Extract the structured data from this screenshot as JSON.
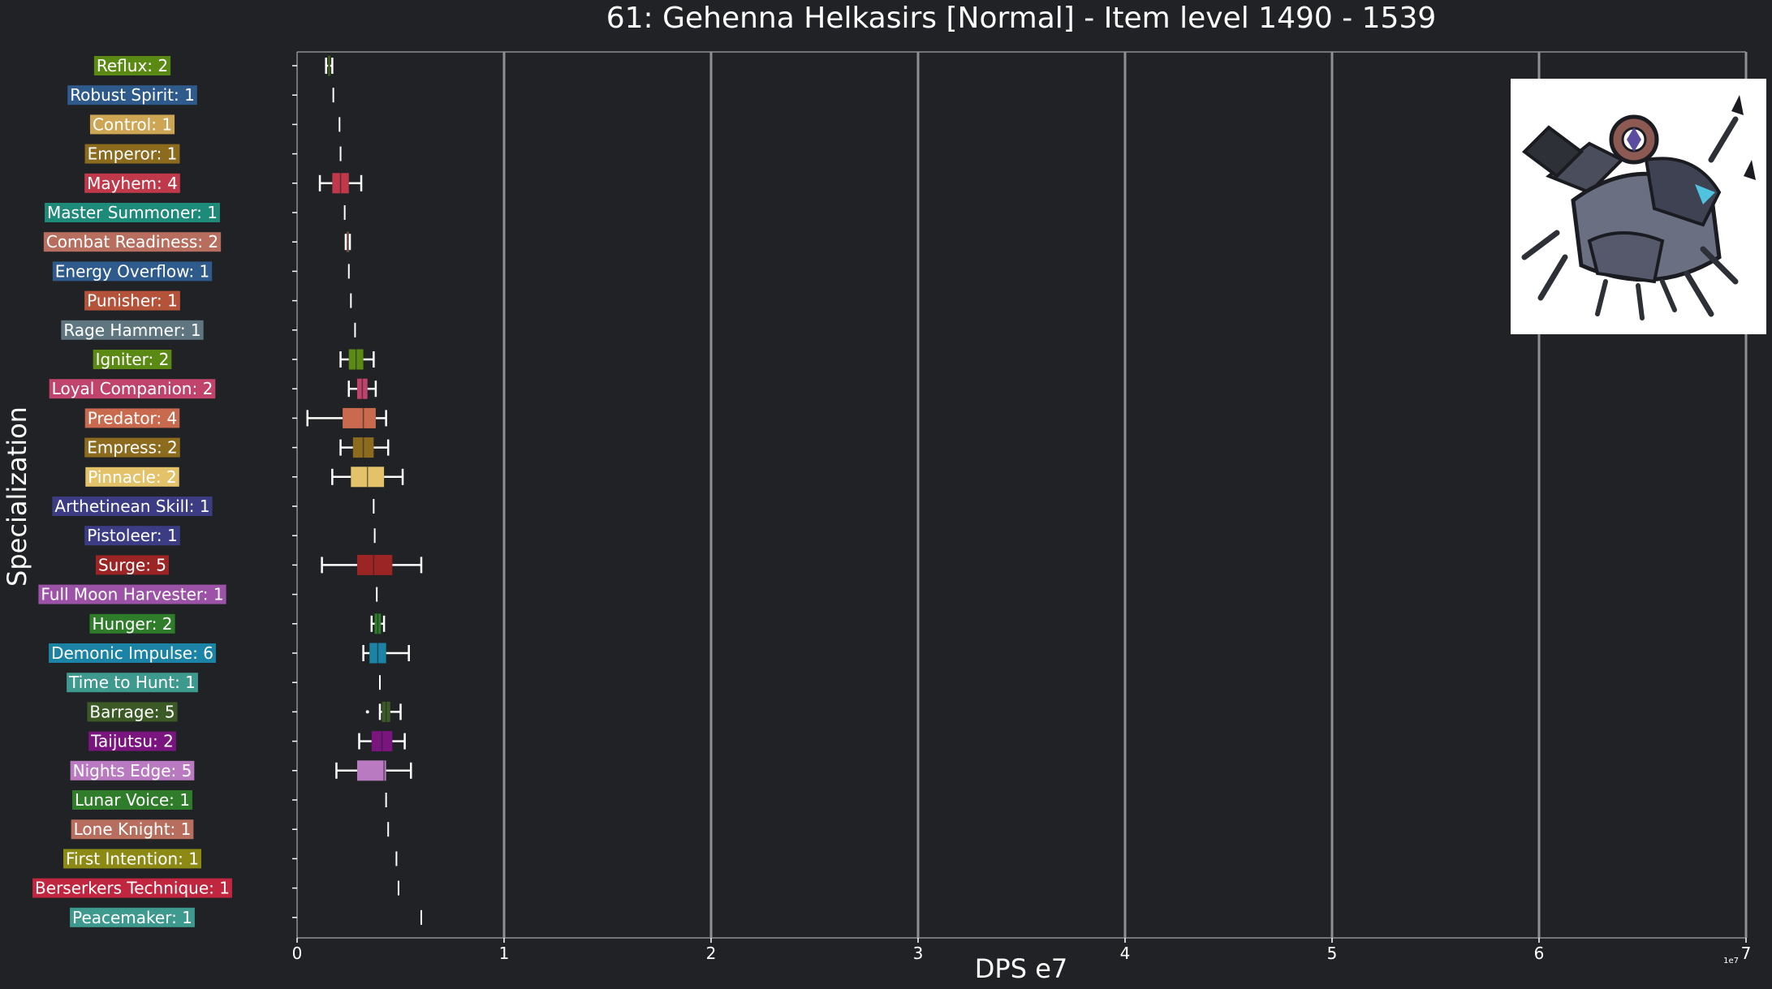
{
  "chart_data": {
    "type": "boxplot",
    "orientation": "horizontal",
    "title": "61: Gehenna Helkasirs [Normal] - Item level 1490 - 1539",
    "xlabel": "DPS e7",
    "ylabel": "Specialization",
    "x_scale_label": "1e7",
    "xlim": [
      0,
      7
    ],
    "x_ticks": [
      "0",
      "1",
      "2",
      "3",
      "4",
      "5",
      "6",
      "7"
    ],
    "grid": "vertical",
    "boss_image": "boss-portrait",
    "categories": [
      {
        "label": "Reflux: 2",
        "color": "#5b8a14",
        "whisker_low": 0.14,
        "q1": 0.15,
        "median": 0.155,
        "q3": 0.16,
        "whisker_high": 0.17,
        "outliers": []
      },
      {
        "label": "Robust Spirit: 1",
        "color": "#2f5a8c",
        "whisker_low": 0.175,
        "q1": 0.175,
        "median": 0.175,
        "q3": 0.175,
        "whisker_high": 0.175,
        "outliers": []
      },
      {
        "label": "Control: 1",
        "color": "#cca655",
        "whisker_low": 0.205,
        "q1": 0.205,
        "median": 0.205,
        "q3": 0.205,
        "whisker_high": 0.205,
        "outliers": []
      },
      {
        "label": "Emperor: 1",
        "color": "#8c6b1f",
        "whisker_low": 0.21,
        "q1": 0.21,
        "median": 0.21,
        "q3": 0.21,
        "whisker_high": 0.21,
        "outliers": []
      },
      {
        "label": "Mayhem: 4",
        "color": "#c0394b",
        "whisker_low": 0.11,
        "q1": 0.17,
        "median": 0.21,
        "q3": 0.25,
        "whisker_high": 0.31,
        "outliers": []
      },
      {
        "label": "Master Summoner: 1",
        "color": "#1e8a7a",
        "whisker_low": 0.23,
        "q1": 0.23,
        "median": 0.23,
        "q3": 0.23,
        "whisker_high": 0.23,
        "outliers": []
      },
      {
        "label": "Combat Readiness: 2",
        "color": "#b86e5e",
        "whisker_low": 0.235,
        "q1": 0.24,
        "median": 0.245,
        "q3": 0.25,
        "whisker_high": 0.255,
        "outliers": []
      },
      {
        "label": "Energy Overflow: 1",
        "color": "#2f5a8c",
        "whisker_low": 0.25,
        "q1": 0.25,
        "median": 0.25,
        "q3": 0.25,
        "whisker_high": 0.25,
        "outliers": []
      },
      {
        "label": "Punisher: 1",
        "color": "#b5533a",
        "whisker_low": 0.26,
        "q1": 0.26,
        "median": 0.26,
        "q3": 0.26,
        "whisker_high": 0.26,
        "outliers": []
      },
      {
        "label": "Rage Hammer: 1",
        "color": "#5f7680",
        "whisker_low": 0.28,
        "q1": 0.28,
        "median": 0.28,
        "q3": 0.28,
        "whisker_high": 0.28,
        "outliers": []
      },
      {
        "label": "Igniter: 2",
        "color": "#5b8a14",
        "whisker_low": 0.21,
        "q1": 0.25,
        "median": 0.285,
        "q3": 0.32,
        "whisker_high": 0.37,
        "outliers": []
      },
      {
        "label": "Loyal Companion: 2",
        "color": "#c0436b",
        "whisker_low": 0.25,
        "q1": 0.29,
        "median": 0.315,
        "q3": 0.34,
        "whisker_high": 0.38,
        "outliers": []
      },
      {
        "label": "Predator: 4",
        "color": "#c96a4e",
        "whisker_low": 0.05,
        "q1": 0.22,
        "median": 0.32,
        "q3": 0.38,
        "whisker_high": 0.43,
        "outliers": []
      },
      {
        "label": "Empress: 2",
        "color": "#8c6b1f",
        "whisker_low": 0.21,
        "q1": 0.27,
        "median": 0.32,
        "q3": 0.37,
        "whisker_high": 0.44,
        "outliers": []
      },
      {
        "label": "Pinnacle: 2",
        "color": "#e3c26a",
        "whisker_low": 0.17,
        "q1": 0.26,
        "median": 0.34,
        "q3": 0.42,
        "whisker_high": 0.51,
        "outliers": []
      },
      {
        "label": "Arthetinean Skill: 1",
        "color": "#3c3c84",
        "whisker_low": 0.37,
        "q1": 0.37,
        "median": 0.37,
        "q3": 0.37,
        "whisker_high": 0.37,
        "outliers": []
      },
      {
        "label": "Pistoleer: 1",
        "color": "#3c3c84",
        "whisker_low": 0.375,
        "q1": 0.375,
        "median": 0.375,
        "q3": 0.375,
        "whisker_high": 0.375,
        "outliers": []
      },
      {
        "label": "Surge: 5",
        "color": "#9b2525",
        "whisker_low": 0.12,
        "q1": 0.29,
        "median": 0.37,
        "q3": 0.46,
        "whisker_high": 0.6,
        "outliers": []
      },
      {
        "label": "Full Moon Harvester: 1",
        "color": "#9c52a6",
        "whisker_low": 0.385,
        "q1": 0.385,
        "median": 0.385,
        "q3": 0.385,
        "whisker_high": 0.385,
        "outliers": []
      },
      {
        "label": "Hunger: 2",
        "color": "#2f7d2a",
        "whisker_low": 0.36,
        "q1": 0.375,
        "median": 0.39,
        "q3": 0.405,
        "whisker_high": 0.42,
        "outliers": []
      },
      {
        "label": "Demonic Impulse: 6",
        "color": "#1b84a6",
        "whisker_low": 0.32,
        "q1": 0.35,
        "median": 0.39,
        "q3": 0.43,
        "whisker_high": 0.54,
        "outliers": []
      },
      {
        "label": "Time to Hunt: 1",
        "color": "#3e9a8e",
        "whisker_low": 0.4,
        "q1": 0.4,
        "median": 0.4,
        "q3": 0.4,
        "whisker_high": 0.4,
        "outliers": []
      },
      {
        "label": "Barrage: 5",
        "color": "#3c5a26",
        "whisker_low": 0.4,
        "q1": 0.41,
        "median": 0.43,
        "q3": 0.45,
        "whisker_high": 0.5,
        "outliers": [
          0.34
        ]
      },
      {
        "label": "Taijutsu: 2",
        "color": "#7a1580",
        "whisker_low": 0.3,
        "q1": 0.36,
        "median": 0.41,
        "q3": 0.46,
        "whisker_high": 0.52,
        "outliers": []
      },
      {
        "label": "Nights Edge: 5",
        "color": "#b97ac2",
        "whisker_low": 0.19,
        "q1": 0.29,
        "median": 0.42,
        "q3": 0.43,
        "whisker_high": 0.55,
        "outliers": []
      },
      {
        "label": "Lunar Voice: 1",
        "color": "#2f7d2a",
        "whisker_low": 0.43,
        "q1": 0.43,
        "median": 0.43,
        "q3": 0.43,
        "whisker_high": 0.43,
        "outliers": []
      },
      {
        "label": "Lone Knight: 1",
        "color": "#b86e5e",
        "whisker_low": 0.44,
        "q1": 0.44,
        "median": 0.44,
        "q3": 0.44,
        "whisker_high": 0.44,
        "outliers": []
      },
      {
        "label": "First Intention: 1",
        "color": "#8c8a14",
        "whisker_low": 0.48,
        "q1": 0.48,
        "median": 0.48,
        "q3": 0.48,
        "whisker_high": 0.48,
        "outliers": []
      },
      {
        "label": "Berserkers Technique: 1",
        "color": "#c0263f",
        "whisker_low": 0.49,
        "q1": 0.49,
        "median": 0.49,
        "q3": 0.49,
        "whisker_high": 0.49,
        "outliers": []
      },
      {
        "label": "Peacemaker: 1",
        "color": "#3e9a8e",
        "whisker_low": 0.6,
        "q1": 0.6,
        "median": 0.6,
        "q3": 0.6,
        "whisker_high": 0.6,
        "outliers": []
      }
    ]
  }
}
